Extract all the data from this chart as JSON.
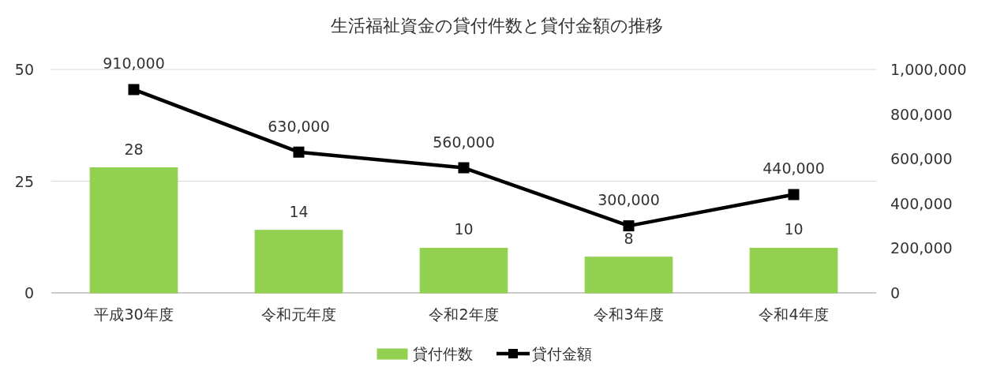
{
  "chart_data": {
    "type": "bar",
    "title": "生活福祉資金の貸付件数と貸付金額の推移",
    "categories": [
      "平成30年度",
      "令和元年度",
      "令和2年度",
      "令和3年度",
      "令和4年度"
    ],
    "series": [
      {
        "name": "貸付件数",
        "color": "#92d050",
        "values": [
          28,
          14,
          10,
          8,
          10
        ],
        "value_labels": [
          "28",
          "14",
          "10",
          "8",
          "10"
        ]
      },
      {
        "name": "貸付金額",
        "type": "line",
        "axis": "y2",
        "color": "#000000",
        "values": [
          910000,
          630000,
          560000,
          300000,
          440000
        ],
        "value_labels": [
          "910,000",
          "630,000",
          "560,000",
          "300,000",
          "440,000"
        ]
      }
    ],
    "ylim": [
      0,
      50
    ],
    "yticks": [
      0,
      25,
      50
    ],
    "y2lim": [
      0,
      1000000
    ],
    "y2ticks": [
      0,
      {
        "value": 200000,
        "label": "200,000"
      },
      {
        "value": 400000,
        "label": "400,000"
      },
      {
        "value": 600000,
        "label": "600,000"
      },
      {
        "value": 800000,
        "label": "800,000"
      },
      {
        "value": 1000000,
        "label": "1,000,000"
      }
    ],
    "grid": "y",
    "legend": "bottom",
    "marker": "square",
    "line_style": "solid"
  }
}
